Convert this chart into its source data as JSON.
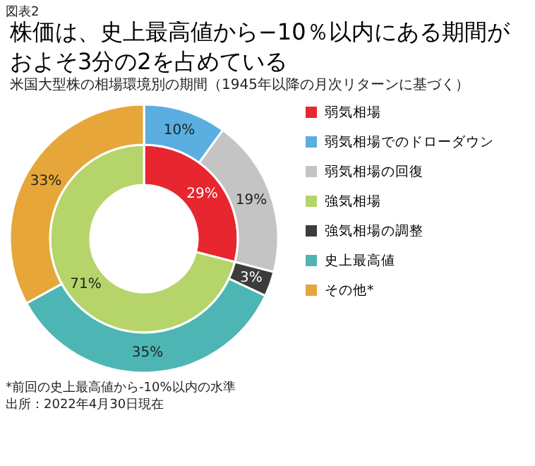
{
  "chart_data": {
    "type": "donut",
    "title": "株価は、史上最高値から−10％以内にある期間がおよそ3分の2を占めている",
    "subtitle": "米国大型株の相場環境別の期間（1945年以降の月次リターンに基づく）",
    "categories": [
      "弱気相場",
      "弱気相場でのドローダウン",
      "弱気相場の回復",
      "強気相場",
      "強気相場の調整",
      "史上最高値",
      "その他*"
    ],
    "colors": [
      "#e8262f",
      "#5aaee0",
      "#c4c4c4",
      "#b5d56a",
      "#3c3c3c",
      "#4db6b4",
      "#e6a63a"
    ],
    "series": [
      {
        "values": [
          29,
          null,
          null,
          71,
          null,
          null,
          null
        ],
        "value_labels": [
          "29%",
          null,
          null,
          "71%",
          null,
          null,
          null
        ]
      },
      {
        "values": [
          null,
          10,
          19,
          null,
          3,
          35,
          33
        ],
        "value_labels": [
          null,
          "10%",
          "19%",
          null,
          "3%",
          "35%",
          "33%"
        ]
      }
    ],
    "legend": "right",
    "annotations": [
      "図表2",
      "*前回の史上最高値から-10%以内の水準",
      "出所：2022年4月30日現在"
    ]
  }
}
